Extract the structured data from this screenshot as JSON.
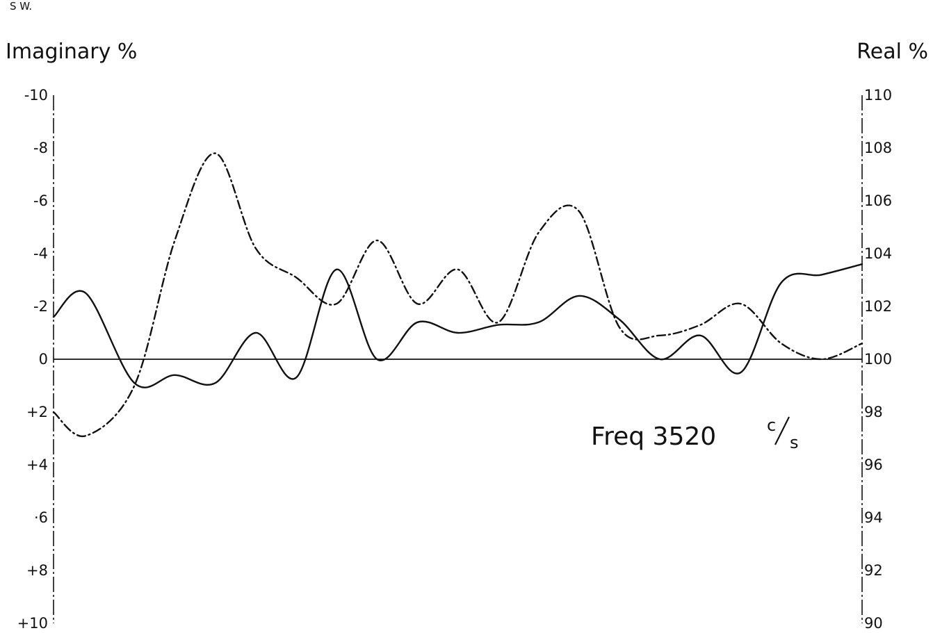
{
  "chart_data": {
    "type": "line",
    "title": "",
    "corner_label": "S W.",
    "annotation": {
      "prefix": "Freq 3520",
      "unit_numerator": "c",
      "unit_denominator": "s"
    },
    "x": [
      0,
      0.4,
      1.0,
      1.5,
      2.0,
      2.5,
      3.0,
      3.5,
      4.0,
      4.5,
      5.0,
      5.5,
      6.0,
      6.5,
      7.0,
      7.5,
      8.0,
      8.5,
      9.0,
      9.5,
      10.0
    ],
    "left_axis": {
      "label": "Imaginary %",
      "ticks": [
        -10,
        -8,
        -6,
        -4,
        -2,
        0,
        2,
        4,
        6,
        8,
        10
      ],
      "tick_labels": [
        "-10",
        "-8",
        "-6",
        "-4",
        "-2",
        "0",
        "+2",
        "+4",
        "·6",
        "+8",
        "+10"
      ],
      "ylim": [
        -10,
        10
      ],
      "inverted": true
    },
    "right_axis": {
      "label": "Real %",
      "ticks": [
        90,
        92,
        94,
        96,
        98,
        100,
        102,
        104,
        106,
        108,
        110
      ],
      "tick_labels": [
        "90",
        "92",
        "94",
        "96",
        "98",
        "100",
        "102",
        "104",
        "106",
        "108",
        "110"
      ],
      "ylim": [
        90,
        110
      ]
    },
    "grid": false,
    "reference_line": 0,
    "series": [
      {
        "style": "solid",
        "axis": "right",
        "values": [
          101.6,
          102.5,
          99.1,
          99.4,
          99.1,
          101.0,
          99.3,
          103.4,
          100.0,
          101.4,
          101.0,
          101.3,
          101.4,
          102.4,
          101.5,
          100.0,
          100.9,
          99.5,
          102.9,
          103.2,
          103.6
        ]
      },
      {
        "style": "dash-dot",
        "axis": "left",
        "values": [
          2.0,
          2.9,
          1.0,
          -4.5,
          -7.8,
          -4.2,
          -3.1,
          -2.1,
          -4.5,
          -2.1,
          -3.4,
          -1.4,
          -4.8,
          -5.6,
          -1.2,
          -0.9,
          -1.3,
          -2.1,
          -0.6,
          0.0,
          -0.6
        ]
      }
    ]
  }
}
